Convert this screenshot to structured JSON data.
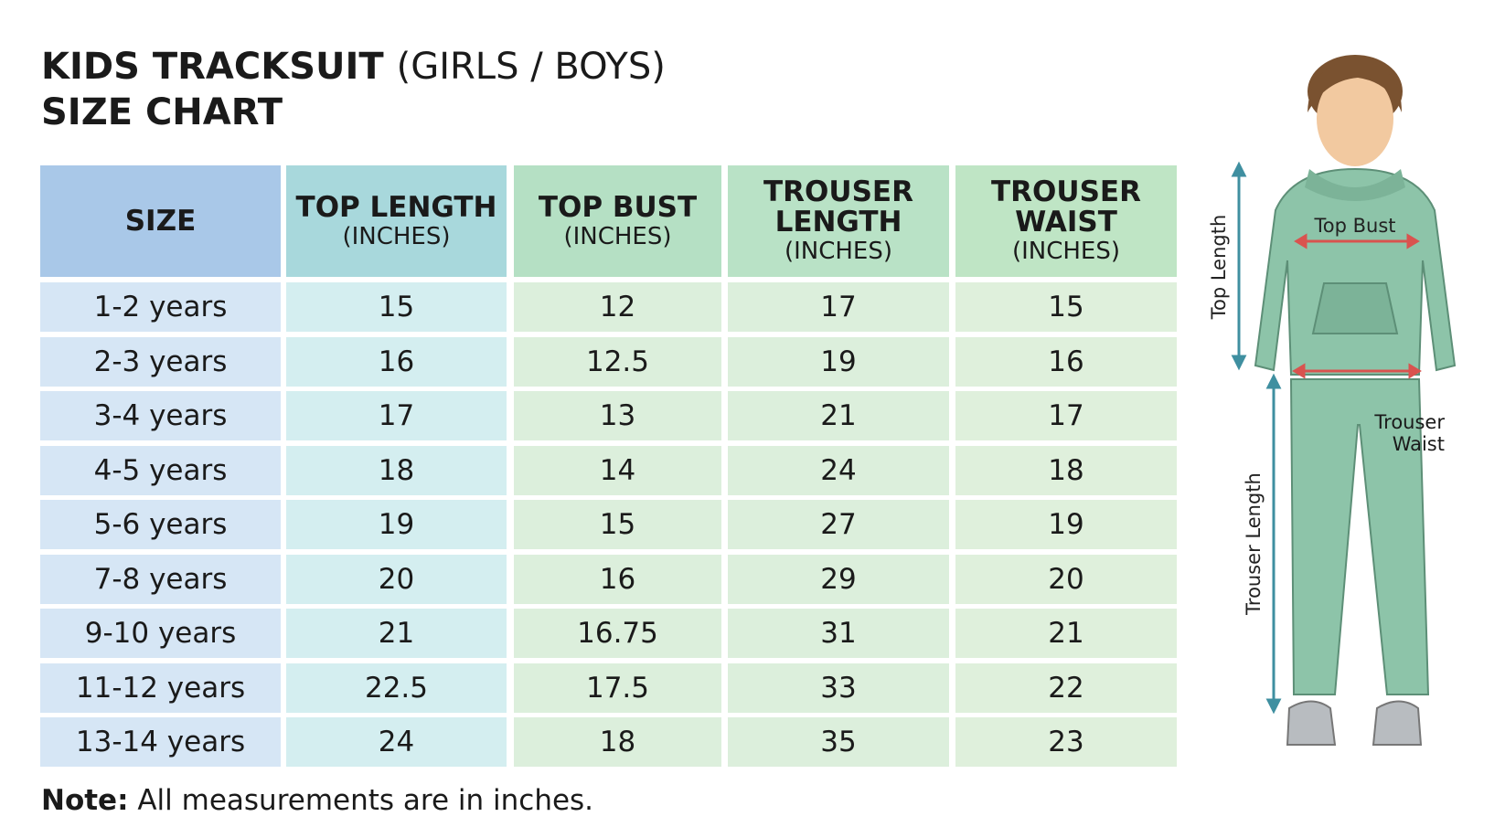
{
  "header": {
    "title_bold": "KIDS TRACKSUIT",
    "title_regular": "(GIRLS / BOYS)",
    "subtitle": "SIZE CHART"
  },
  "table": {
    "columns": [
      {
        "title": "SIZE"
      },
      {
        "title": "TOP LENGTH",
        "unit": "(INCHES)"
      },
      {
        "title": "TOP BUST",
        "unit": "(INCHES)"
      },
      {
        "title": "TROUSER LENGTH",
        "unit": "(INCHES)"
      },
      {
        "title": "TROUSER WAIST",
        "unit": "(INCHES)"
      }
    ],
    "rows": [
      [
        "1-2 years",
        15,
        12,
        17,
        15
      ],
      [
        "2-3 years",
        16,
        12.5,
        19,
        16
      ],
      [
        "3-4 years",
        17,
        13,
        21,
        17
      ],
      [
        "4-5 years",
        18,
        14,
        24,
        18
      ],
      [
        "5-6 years",
        19,
        15,
        27,
        19
      ],
      [
        "7-8 years",
        20,
        16,
        29,
        20
      ],
      [
        "9-10 years",
        21,
        16.75,
        31,
        21
      ],
      [
        "11-12 years",
        22.5,
        17.5,
        33,
        22
      ],
      [
        "13-14 years",
        24,
        18,
        35,
        23
      ]
    ]
  },
  "note": {
    "label": "Note:",
    "text": "All measurements are in inches."
  },
  "figure": {
    "top_bust": "Top Bust",
    "top_length": "Top Length",
    "trouser_waist": "Trouser Waist",
    "trouser_length": "Trouser Length"
  }
}
